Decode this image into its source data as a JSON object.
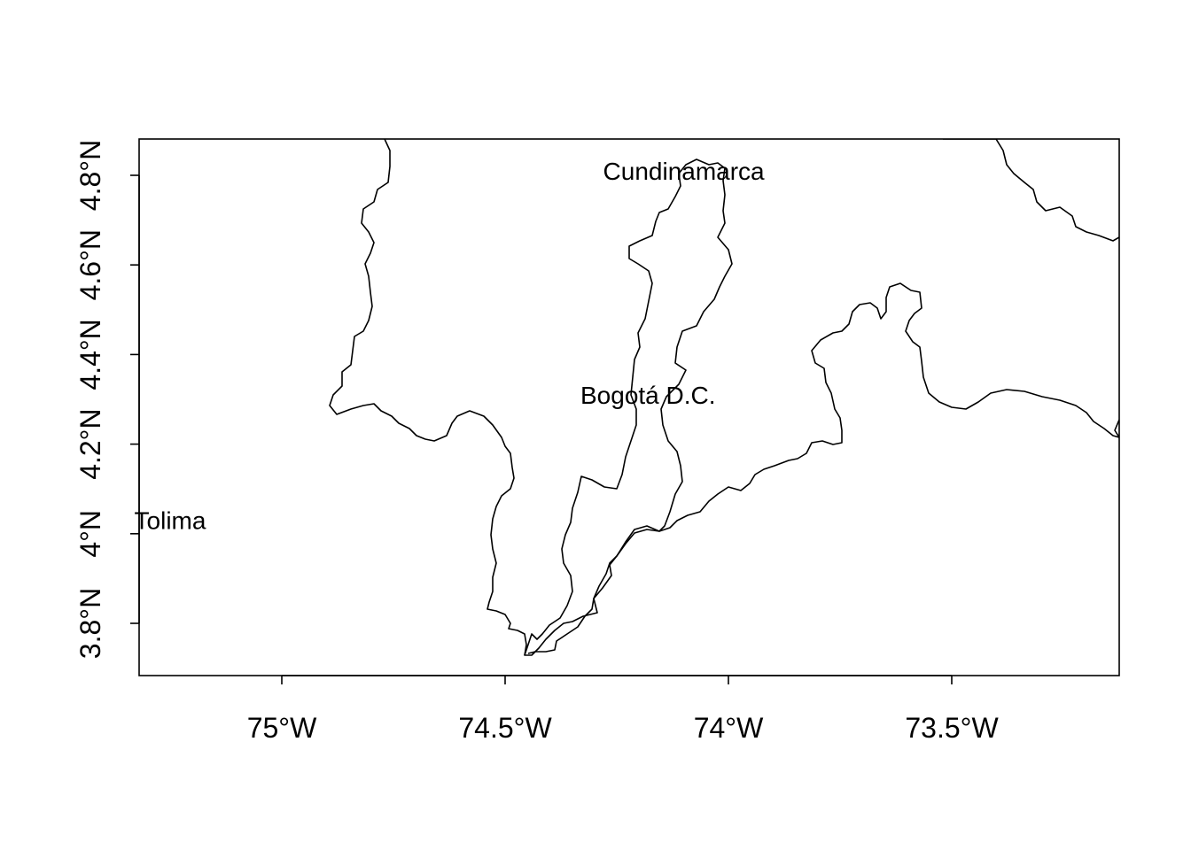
{
  "map": {
    "x_ticks": [
      {
        "value": -75.0,
        "label": "75°W"
      },
      {
        "value": -74.5,
        "label": "74.5°W"
      },
      {
        "value": -74.0,
        "label": "74°W"
      },
      {
        "value": -73.5,
        "label": "73.5°W"
      }
    ],
    "y_ticks": [
      {
        "value": 3.8,
        "label": "3.8°N"
      },
      {
        "value": 4.0,
        "label": "4°N"
      },
      {
        "value": 4.2,
        "label": "4.2°N"
      },
      {
        "value": 4.4,
        "label": "4.4°N"
      },
      {
        "value": 4.6,
        "label": "4.6°N"
      },
      {
        "value": 4.8,
        "label": "4.8°N"
      }
    ],
    "region_labels": [
      {
        "name": "Cundinamarca",
        "lon": -74.1,
        "lat": 4.81
      },
      {
        "name": "Bogotá D.C.",
        "lon": -74.18,
        "lat": 4.31
      },
      {
        "name": "Tolima",
        "lon": -75.25,
        "lat": 4.03
      }
    ],
    "colors": {
      "line": "#000000",
      "background": "#ffffff"
    }
  }
}
